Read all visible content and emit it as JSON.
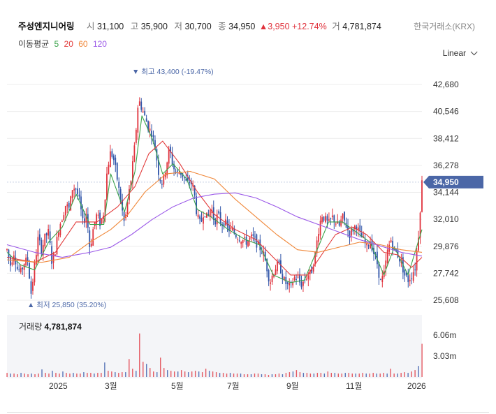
{
  "header": {
    "name": "주성엔지니어링",
    "open_label": "시",
    "open": "31,100",
    "high_label": "고",
    "high": "35,900",
    "low_label": "저",
    "low": "30,700",
    "close_label": "종",
    "close": "34,950",
    "change": "▲3,950 +12.74%",
    "volume_label": "거",
    "volume": "4,781,874",
    "exchange": "한국거래소(KRX)"
  },
  "ma": {
    "title": "이동평균",
    "items": [
      {
        "label": "5",
        "color": "#3aa34a"
      },
      {
        "label": "20",
        "color": "#e23b3b"
      },
      {
        "label": "60",
        "color": "#f0883a"
      },
      {
        "label": "120",
        "color": "#9b59e8"
      }
    ]
  },
  "scale_label": "Linear",
  "colors": {
    "up": "#e0323c",
    "down": "#2f54a8",
    "current_badge": "#4b67a7",
    "annotation": "#4b67a7"
  },
  "chart_data": {
    "type": "candlestick",
    "y_ticks": [
      "42,680",
      "40,546",
      "38,412",
      "36,278",
      "34,144",
      "32,010",
      "29,876",
      "27,742",
      "25,608"
    ],
    "ylim": [
      25608,
      42680
    ],
    "x_ticks": [
      "2025",
      "3월",
      "5월",
      "7월",
      "9월",
      "11월",
      "2026"
    ],
    "current_price": "34,950",
    "high_annotation": "최고 43,400 (-19.47%)",
    "low_annotation": "최저 25,850 (35.20%)",
    "volume_title": "거래량",
    "volume_value": "4,781,874",
    "volume_ticks": [
      "6.06m",
      "3.03m"
    ],
    "price_path": [
      [
        0,
        29600
      ],
      [
        5,
        28400
      ],
      [
        10,
        29400
      ],
      [
        15,
        28100
      ],
      [
        20,
        27800
      ],
      [
        25,
        28600
      ],
      [
        30,
        28800
      ],
      [
        35,
        26100
      ],
      [
        40,
        28400
      ],
      [
        45,
        30500
      ],
      [
        50,
        29600
      ],
      [
        55,
        30600
      ],
      [
        60,
        31000
      ],
      [
        65,
        28600
      ],
      [
        70,
        29600
      ],
      [
        75,
        31400
      ],
      [
        80,
        32200
      ],
      [
        85,
        33200
      ],
      [
        90,
        32800
      ],
      [
        95,
        34600
      ],
      [
        100,
        34400
      ],
      [
        105,
        33400
      ],
      [
        110,
        31600
      ],
      [
        115,
        32600
      ],
      [
        120,
        29600
      ],
      [
        125,
        31400
      ],
      [
        130,
        32400
      ],
      [
        135,
        31600
      ],
      [
        140,
        32600
      ],
      [
        145,
        36000
      ],
      [
        150,
        37400
      ],
      [
        155,
        36600
      ],
      [
        160,
        35000
      ],
      [
        165,
        33200
      ],
      [
        170,
        31600
      ],
      [
        175,
        33600
      ],
      [
        180,
        35400
      ],
      [
        185,
        38000
      ],
      [
        190,
        41500
      ],
      [
        195,
        40800
      ],
      [
        200,
        40000
      ],
      [
        205,
        39200
      ],
      [
        210,
        38800
      ],
      [
        215,
        37400
      ],
      [
        220,
        35400
      ],
      [
        225,
        34800
      ],
      [
        230,
        36200
      ],
      [
        235,
        37600
      ],
      [
        240,
        36200
      ],
      [
        245,
        35600
      ],
      [
        250,
        35800
      ],
      [
        255,
        35400
      ],
      [
        260,
        34800
      ],
      [
        265,
        35000
      ],
      [
        270,
        34400
      ],
      [
        275,
        32200
      ],
      [
        280,
        31600
      ],
      [
        285,
        32800
      ],
      [
        290,
        32000
      ],
      [
        295,
        33000
      ],
      [
        300,
        31800
      ],
      [
        305,
        32400
      ],
      [
        310,
        31600
      ],
      [
        315,
        31800
      ],
      [
        320,
        31200
      ],
      [
        325,
        31200
      ],
      [
        330,
        30800
      ],
      [
        335,
        30600
      ],
      [
        340,
        30400
      ],
      [
        345,
        30200
      ],
      [
        350,
        30400
      ],
      [
        355,
        30600
      ],
      [
        360,
        30200
      ],
      [
        365,
        29800
      ],
      [
        370,
        29400
      ],
      [
        375,
        28400
      ],
      [
        380,
        27000
      ],
      [
        385,
        27800
      ],
      [
        390,
        28400
      ],
      [
        395,
        28200
      ],
      [
        400,
        27200
      ],
      [
        405,
        26800
      ],
      [
        410,
        26600
      ],
      [
        415,
        27400
      ],
      [
        420,
        27400
      ],
      [
        425,
        26800
      ],
      [
        430,
        27200
      ],
      [
        435,
        27600
      ],
      [
        440,
        27800
      ],
      [
        445,
        29000
      ],
      [
        450,
        31000
      ],
      [
        455,
        32400
      ],
      [
        460,
        32000
      ],
      [
        465,
        31600
      ],
      [
        470,
        32200
      ],
      [
        475,
        31800
      ],
      [
        480,
        31400
      ],
      [
        485,
        32200
      ],
      [
        490,
        31600
      ],
      [
        495,
        30800
      ],
      [
        500,
        31200
      ],
      [
        505,
        31600
      ],
      [
        510,
        30800
      ],
      [
        515,
        30400
      ],
      [
        520,
        29800
      ],
      [
        525,
        30400
      ],
      [
        530,
        29400
      ],
      [
        535,
        28600
      ],
      [
        540,
        27000
      ],
      [
        545,
        27600
      ],
      [
        550,
        29400
      ],
      [
        555,
        30400
      ],
      [
        560,
        29600
      ],
      [
        565,
        29200
      ],
      [
        570,
        28600
      ],
      [
        575,
        27600
      ],
      [
        580,
        27200
      ],
      [
        585,
        27600
      ],
      [
        590,
        28200
      ],
      [
        595,
        30800
      ],
      [
        600,
        34950
      ]
    ],
    "ma5": [
      [
        0,
        29400
      ],
      [
        20,
        28400
      ],
      [
        40,
        28000
      ],
      [
        60,
        30200
      ],
      [
        80,
        31400
      ],
      [
        100,
        34000
      ],
      [
        120,
        31600
      ],
      [
        140,
        31600
      ],
      [
        150,
        35600
      ],
      [
        170,
        32600
      ],
      [
        185,
        35800
      ],
      [
        195,
        40200
      ],
      [
        210,
        38400
      ],
      [
        225,
        35600
      ],
      [
        240,
        36400
      ],
      [
        260,
        35200
      ],
      [
        275,
        32800
      ],
      [
        295,
        32200
      ],
      [
        320,
        31200
      ],
      [
        345,
        30400
      ],
      [
        365,
        30000
      ],
      [
        385,
        27600
      ],
      [
        410,
        27000
      ],
      [
        430,
        27200
      ],
      [
        450,
        29800
      ],
      [
        465,
        31800
      ],
      [
        485,
        31800
      ],
      [
        505,
        31000
      ],
      [
        525,
        30200
      ],
      [
        545,
        27600
      ],
      [
        560,
        29800
      ],
      [
        580,
        27600
      ],
      [
        600,
        31200
      ]
    ],
    "ma20": [
      [
        0,
        29000
      ],
      [
        40,
        28600
      ],
      [
        70,
        29400
      ],
      [
        100,
        31800
      ],
      [
        130,
        31800
      ],
      [
        160,
        33000
      ],
      [
        185,
        34600
      ],
      [
        205,
        37200
      ],
      [
        225,
        38200
      ],
      [
        250,
        36400
      ],
      [
        275,
        34200
      ],
      [
        300,
        32400
      ],
      [
        330,
        31200
      ],
      [
        360,
        30400
      ],
      [
        385,
        29000
      ],
      [
        410,
        27600
      ],
      [
        435,
        27600
      ],
      [
        455,
        29200
      ],
      [
        475,
        30800
      ],
      [
        500,
        31400
      ],
      [
        520,
        30800
      ],
      [
        545,
        29400
      ],
      [
        565,
        29200
      ],
      [
        585,
        28200
      ],
      [
        600,
        29000
      ]
    ],
    "ma60": [
      [
        0,
        28800
      ],
      [
        50,
        28600
      ],
      [
        90,
        29000
      ],
      [
        120,
        30200
      ],
      [
        150,
        31200
      ],
      [
        175,
        32400
      ],
      [
        200,
        34200
      ],
      [
        230,
        35600
      ],
      [
        265,
        35800
      ],
      [
        300,
        35200
      ],
      [
        330,
        33600
      ],
      [
        360,
        32200
      ],
      [
        390,
        30800
      ],
      [
        420,
        29600
      ],
      [
        450,
        29400
      ],
      [
        480,
        29800
      ],
      [
        510,
        30200
      ],
      [
        540,
        30000
      ],
      [
        570,
        29600
      ],
      [
        600,
        29400
      ]
    ],
    "ma120": [
      [
        0,
        30000
      ],
      [
        40,
        29400
      ],
      [
        80,
        29000
      ],
      [
        120,
        29400
      ],
      [
        150,
        29800
      ],
      [
        180,
        30800
      ],
      [
        210,
        32000
      ],
      [
        240,
        33000
      ],
      [
        270,
        33700
      ],
      [
        300,
        34000
      ],
      [
        330,
        34100
      ],
      [
        360,
        33700
      ],
      [
        390,
        33000
      ],
      [
        420,
        32200
      ],
      [
        450,
        31600
      ],
      [
        480,
        31000
      ],
      [
        510,
        30400
      ],
      [
        540,
        29900
      ],
      [
        570,
        29400
      ],
      [
        600,
        29100
      ]
    ],
    "volumes": [
      0.6,
      0.5,
      0.5,
      0.4,
      0.6,
      0.5,
      0.4,
      0.5,
      0.4,
      0.5,
      1.1,
      0.6,
      0.5,
      0.9,
      0.6,
      0.5,
      0.8,
      0.6,
      0.5,
      0.6,
      0.5,
      0.5,
      0.7,
      0.6,
      0.6,
      0.5,
      0.6,
      0.6,
      2.1,
      0.9,
      0.8,
      0.7,
      0.6,
      0.7,
      0.7,
      2.6,
      1.2,
      0.9,
      6.3,
      2.2,
      1.9,
      1.3,
      0.8,
      0.7,
      2.8,
      1.3,
      1.0,
      0.9,
      0.8,
      0.8,
      1.0,
      0.8,
      0.7,
      0.8,
      0.9,
      0.8,
      0.7,
      1.2,
      0.9,
      0.8,
      0.7,
      0.6,
      0.6,
      0.5,
      0.6,
      0.5,
      0.5,
      0.5,
      0.4,
      0.4,
      0.4,
      0.5,
      0.5,
      0.4,
      0.4,
      0.3,
      0.4,
      0.4,
      0.5,
      0.4,
      0.6,
      0.7,
      0.8,
      1.0,
      0.7,
      0.6,
      0.6,
      0.5,
      0.5,
      0.6,
      0.6,
      0.5,
      0.8,
      0.6,
      0.6,
      0.5,
      0.5,
      0.6,
      0.6,
      0.5,
      0.5,
      0.5,
      0.6,
      0.5,
      0.5,
      0.6,
      0.5,
      0.5,
      0.6,
      0.5,
      1.2,
      0.5,
      0.5,
      0.6,
      0.7,
      0.6,
      0.8,
      1.0,
      1.6,
      4.8
    ]
  }
}
